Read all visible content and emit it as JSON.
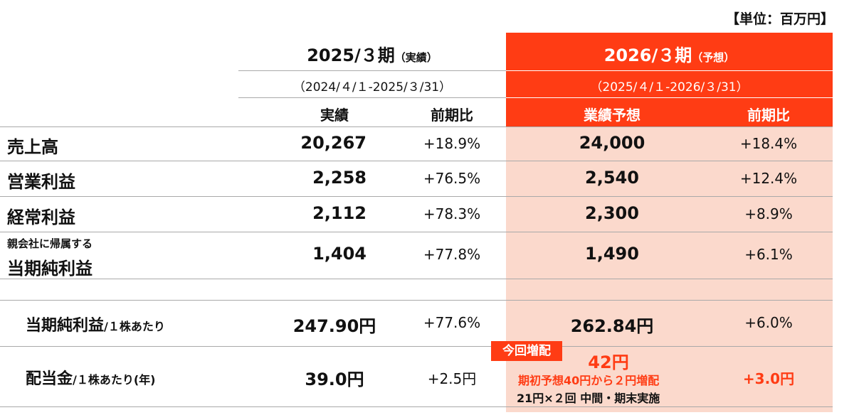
{
  "unit_label": "【単位：百万円】",
  "header": {
    "prev_period": "2025/３期",
    "prev_tag": "（実績）",
    "prev_range": "（2024/４/１-2025/３/31）",
    "next_period": "2026/３期",
    "next_tag": "（予想）",
    "next_range": "（2025/４/１-2026/３/31）",
    "col_actual": "実績",
    "col_yoy1": "前期比",
    "col_forecast": "業績予想",
    "col_yoy2": "前期比"
  },
  "rows": [
    {
      "label": "売上高",
      "actual": "20,267",
      "yoy1": "+18.9%",
      "forecast": "24,000",
      "yoy2": "+18.4%"
    },
    {
      "label": "営業利益",
      "actual": "2,258",
      "yoy1": "+76.5%",
      "forecast": "2,540",
      "yoy2": "+12.4%"
    },
    {
      "label": "経常利益",
      "actual": "2,112",
      "yoy1": "+78.3%",
      "forecast": "2,300",
      "yoy2": "+8.9%"
    },
    {
      "label_small": "親会社に帰属する",
      "label": "当期純利益",
      "actual": "1,404",
      "yoy1": "+77.8%",
      "forecast": "1,490",
      "yoy2": "+6.1%"
    }
  ],
  "eps": {
    "label": "当期純利益",
    "suffix": "/１株あたり",
    "actual": "247.90円",
    "yoy1": "+77.6%",
    "forecast": "262.84円",
    "yoy2": "+6.0%"
  },
  "dividend": {
    "label": "配当金",
    "suffix": "/１株あたり(年)",
    "actual": "39.0円",
    "yoy1": "+2.5円",
    "badge": "今回増配",
    "forecast": "42円",
    "note1": "期初予想40円から２円増配",
    "note2": "21円×２回 中間・期末実施",
    "yoy2": "+3.0円"
  }
}
